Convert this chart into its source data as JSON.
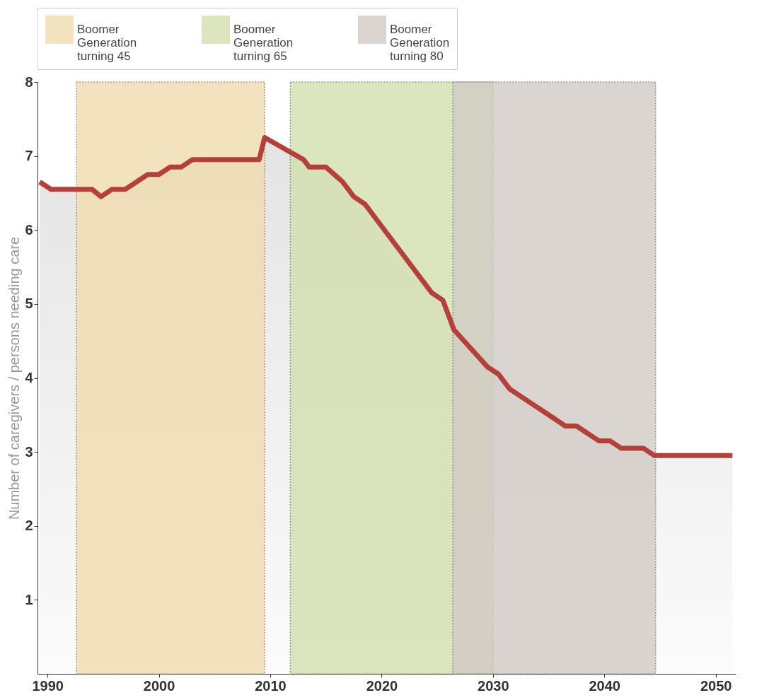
{
  "chart_data": {
    "type": "area",
    "ylabel": "Number of caregivers / persons needing care",
    "x": [
      1989.3,
      1990.3,
      1994,
      1994.8,
      1995.8,
      1997,
      1999,
      2000,
      2001,
      2002,
      2003,
      2009,
      2009.5,
      2013,
      2013.5,
      2015,
      2016.5,
      2017.5,
      2018.5,
      2020,
      2024.5,
      2025.5,
      2026.5,
      2029.5,
      2030.5,
      2031.5,
      2033.5,
      2036.5,
      2037.5,
      2039.5,
      2040.5,
      2041.5,
      2043.5,
      2044.5,
      2051.5
    ],
    "series": [
      {
        "color": "#b5403a",
        "values": [
          6.65,
          6.55,
          6.55,
          6.45,
          6.55,
          6.55,
          6.75,
          6.75,
          6.85,
          6.85,
          6.95,
          6.95,
          7.25,
          6.95,
          6.85,
          6.85,
          6.65,
          6.45,
          6.35,
          6.05,
          5.15,
          5.05,
          4.65,
          4.15,
          4.05,
          3.85,
          3.65,
          3.35,
          3.35,
          3.15,
          3.15,
          3.05,
          3.05,
          2.95,
          2.95
        ]
      }
    ],
    "xlim": [
      1989.1,
      2051.8
    ],
    "ylim": [
      0,
      8
    ],
    "xticks": [
      1990,
      2000,
      2010,
      2020,
      2030,
      2040,
      2050
    ],
    "yticks": [
      1,
      2,
      3,
      4,
      5,
      6,
      7,
      8
    ],
    "bands": [
      {
        "axis": "x",
        "from": 1992.6,
        "to": 2009.5,
        "label": "Boomer\nGeneration\nturning 45",
        "color": "#f0dcae"
      },
      {
        "axis": "x",
        "from": 2011.8,
        "to": 2030,
        "label": "Boomer\nGeneration\nturning 65",
        "color": "#d3dfae"
      },
      {
        "axis": "x",
        "from": 2026.4,
        "to": 2044.6,
        "label": "Boomer\nGeneration\nturning 80",
        "color": "#d2cbc6"
      }
    ],
    "legend": "top",
    "grid": false
  }
}
